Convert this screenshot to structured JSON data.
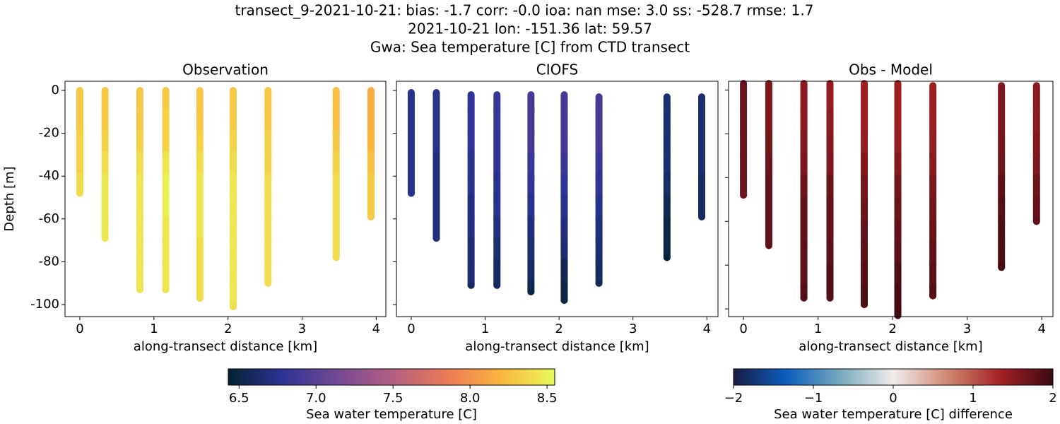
{
  "title": [
    "transect_9-2021-10-21: bias: -1.7  corr: -0.0  ioa: nan  mse: 3.0  ss: -528.7  rmse: 1.7",
    "2021-10-21 lon: -151.36 lat: 59.57",
    "Gwa: Sea temperature [C] from CTD transect"
  ],
  "chart_data": [
    {
      "type": "scatter",
      "title": "Observation",
      "xlabel": "along-transect distance [km]",
      "ylabel": "Depth [m]",
      "xlim": [
        -0.2,
        4.13
      ],
      "ylim": [
        -105.6,
        4.3
      ],
      "xticks": [
        0,
        1,
        2,
        3,
        4
      ],
      "yticks": [
        0,
        -20,
        -40,
        -60,
        -80,
        -100
      ],
      "ytick_labels": true,
      "colorbar": 0,
      "casts": [
        {
          "x": 0,
          "y": [
            0,
            -10,
            -20,
            -30,
            -40,
            -48
          ],
          "values": [
            8.3,
            8.3,
            8.35,
            8.35,
            8.4,
            8.4
          ]
        },
        {
          "x": 0.34,
          "y": [
            0,
            -10,
            -20,
            -30,
            -40,
            -50,
            -60,
            -69
          ],
          "values": [
            8.3,
            8.3,
            8.35,
            8.4,
            8.45,
            8.45,
            8.45,
            8.45
          ]
        },
        {
          "x": 0.81,
          "y": [
            0,
            -10,
            -20,
            -30,
            -40,
            -50,
            -60,
            -70,
            -80,
            -93
          ],
          "values": [
            8.3,
            8.3,
            8.35,
            8.4,
            8.45,
            8.45,
            8.45,
            8.45,
            8.45,
            8.45
          ]
        },
        {
          "x": 1.16,
          "y": [
            0,
            -10,
            -20,
            -30,
            -40,
            -50,
            -60,
            -70,
            -80,
            -93
          ],
          "values": [
            8.3,
            8.35,
            8.35,
            8.45,
            8.5,
            8.5,
            8.45,
            8.45,
            8.45,
            8.45
          ]
        },
        {
          "x": 1.62,
          "y": [
            0,
            -10,
            -20,
            -30,
            -40,
            -50,
            -60,
            -70,
            -80,
            -90,
            -97
          ],
          "values": [
            8.3,
            8.3,
            8.35,
            8.4,
            8.45,
            8.45,
            8.45,
            8.4,
            8.4,
            8.4,
            8.4
          ]
        },
        {
          "x": 2.07,
          "y": [
            0,
            -10,
            -20,
            -30,
            -40,
            -50,
            -60,
            -70,
            -80,
            -90,
            -101
          ],
          "values": [
            8.3,
            8.3,
            8.35,
            8.4,
            8.45,
            8.45,
            8.45,
            8.45,
            8.45,
            8.45,
            8.4
          ]
        },
        {
          "x": 2.54,
          "y": [
            0,
            -10,
            -20,
            -30,
            -40,
            -50,
            -60,
            -70,
            -80,
            -90
          ],
          "values": [
            8.3,
            8.3,
            8.35,
            8.35,
            8.4,
            8.4,
            8.4,
            8.4,
            8.4,
            8.4
          ]
        },
        {
          "x": 3.46,
          "y": [
            0,
            -10,
            -20,
            -30,
            -40,
            -50,
            -60,
            -70,
            -78
          ],
          "values": [
            8.25,
            8.25,
            8.3,
            8.35,
            8.4,
            8.4,
            8.4,
            8.4,
            8.4
          ]
        },
        {
          "x": 3.93,
          "y": [
            0,
            -10,
            -20,
            -30,
            -40,
            -50,
            -59
          ],
          "values": [
            8.15,
            8.15,
            8.2,
            8.25,
            8.3,
            8.3,
            8.3
          ]
        }
      ]
    },
    {
      "type": "scatter",
      "title": "CIOFS",
      "xlabel": "along-transect distance [km]",
      "xlim": [
        -0.2,
        4.15
      ],
      "ylim": [
        -105.6,
        4.3
      ],
      "xticks": [
        0,
        1,
        2,
        3,
        4
      ],
      "yticks": [
        0,
        -20,
        -40,
        -60,
        -80,
        -100
      ],
      "ytick_labels": false,
      "colorbar": 0,
      "casts": [
        {
          "x": 0,
          "y": [
            -1,
            -10,
            -20,
            -30,
            -40,
            -48
          ],
          "values": [
            6.75,
            6.75,
            6.75,
            6.75,
            6.75,
            6.75
          ]
        },
        {
          "x": 0.34,
          "y": [
            -1,
            -10,
            -20,
            -30,
            -40,
            -50,
            -60,
            -69
          ],
          "values": [
            6.75,
            6.75,
            6.75,
            6.7,
            6.7,
            6.7,
            6.7,
            6.7
          ]
        },
        {
          "x": 0.81,
          "y": [
            -2,
            -10,
            -20,
            -30,
            -40,
            -50,
            -60,
            -70,
            -80,
            -91
          ],
          "values": [
            6.8,
            6.8,
            6.8,
            6.75,
            6.75,
            6.7,
            6.7,
            6.65,
            6.65,
            6.6
          ]
        },
        {
          "x": 1.16,
          "y": [
            -2,
            -10,
            -20,
            -30,
            -40,
            -50,
            -60,
            -70,
            -80,
            -91
          ],
          "values": [
            6.85,
            6.85,
            6.8,
            6.8,
            6.75,
            6.75,
            6.7,
            6.65,
            6.6,
            6.6
          ]
        },
        {
          "x": 1.62,
          "y": [
            -2,
            -10,
            -20,
            -30,
            -40,
            -50,
            -60,
            -70,
            -80,
            -90,
            -94
          ],
          "values": [
            6.9,
            6.9,
            6.9,
            6.85,
            6.8,
            6.75,
            6.7,
            6.65,
            6.6,
            6.55,
            6.5
          ]
        },
        {
          "x": 2.07,
          "y": [
            -2,
            -10,
            -20,
            -30,
            -40,
            -50,
            -60,
            -70,
            -80,
            -90,
            -98
          ],
          "values": [
            6.9,
            6.9,
            6.9,
            6.85,
            6.8,
            6.75,
            6.7,
            6.65,
            6.55,
            6.5,
            6.5
          ]
        },
        {
          "x": 2.54,
          "y": [
            -3,
            -10,
            -20,
            -30,
            -40,
            -50,
            -60,
            -70,
            -80,
            -90
          ],
          "values": [
            6.9,
            6.9,
            6.9,
            6.85,
            6.8,
            6.75,
            6.7,
            6.65,
            6.6,
            6.55
          ]
        },
        {
          "x": 3.46,
          "y": [
            -3,
            -10,
            -20,
            -30,
            -40,
            -50,
            -60,
            -70,
            -78
          ],
          "values": [
            6.65,
            6.65,
            6.65,
            6.65,
            6.6,
            6.55,
            6.5,
            6.5,
            6.45
          ]
        },
        {
          "x": 3.93,
          "y": [
            -3,
            -10,
            -20,
            -30,
            -40,
            -50,
            -59
          ],
          "values": [
            6.65,
            6.65,
            6.65,
            6.65,
            6.6,
            6.6,
            6.6
          ]
        }
      ]
    },
    {
      "type": "scatter",
      "title": "Obs - Model",
      "xlabel": "along-transect distance [km]",
      "xlim": [
        -0.2,
        4.15
      ],
      "ylim": [
        -103.5,
        4
      ],
      "xticks": [
        0,
        1,
        2,
        3,
        4
      ],
      "yticks": [
        0,
        -20,
        -40,
        -60,
        -80,
        -100
      ],
      "ytick_labels": false,
      "colorbar": 1,
      "casts": [
        {
          "x": 0,
          "y": [
            3,
            -10,
            -20,
            -30,
            -40,
            -48
          ],
          "values": [
            1.7,
            1.7,
            1.7,
            1.7,
            1.7,
            1.7
          ]
        },
        {
          "x": 0.34,
          "y": [
            3,
            -10,
            -20,
            -30,
            -40,
            -50,
            -60,
            -71
          ],
          "values": [
            1.6,
            1.6,
            1.65,
            1.7,
            1.75,
            1.75,
            1.75,
            1.8
          ]
        },
        {
          "x": 0.81,
          "y": [
            3,
            -10,
            -20,
            -30,
            -40,
            -50,
            -60,
            -70,
            -80,
            -90,
            -95
          ],
          "values": [
            1.5,
            1.5,
            1.55,
            1.6,
            1.7,
            1.75,
            1.75,
            1.8,
            1.8,
            1.85,
            1.85
          ]
        },
        {
          "x": 1.16,
          "y": [
            3,
            -10,
            -20,
            -30,
            -40,
            -50,
            -60,
            -70,
            -80,
            -90,
            -95
          ],
          "values": [
            1.45,
            1.5,
            1.55,
            1.6,
            1.7,
            1.75,
            1.75,
            1.8,
            1.85,
            1.85,
            1.85
          ]
        },
        {
          "x": 1.62,
          "y": [
            3,
            -10,
            -20,
            -30,
            -40,
            -50,
            -60,
            -70,
            -80,
            -90,
            -98
          ],
          "values": [
            1.4,
            1.4,
            1.45,
            1.55,
            1.65,
            1.7,
            1.75,
            1.8,
            1.85,
            1.9,
            1.9
          ]
        },
        {
          "x": 2.07,
          "y": [
            3,
            -10,
            -20,
            -30,
            -40,
            -50,
            -60,
            -70,
            -80,
            -90,
            -100,
            -103
          ],
          "values": [
            1.4,
            1.4,
            1.45,
            1.55,
            1.65,
            1.7,
            1.75,
            1.8,
            1.9,
            1.95,
            1.95,
            1.95
          ]
        },
        {
          "x": 2.54,
          "y": [
            2,
            -10,
            -20,
            -30,
            -40,
            -50,
            -60,
            -70,
            -80,
            -90,
            -94
          ],
          "values": [
            1.4,
            1.4,
            1.45,
            1.5,
            1.6,
            1.65,
            1.7,
            1.75,
            1.8,
            1.85,
            1.85
          ]
        },
        {
          "x": 3.46,
          "y": [
            2,
            -10,
            -20,
            -30,
            -40,
            -50,
            -60,
            -70,
            -80,
            -81
          ],
          "values": [
            1.6,
            1.6,
            1.65,
            1.7,
            1.8,
            1.85,
            1.9,
            1.9,
            1.95,
            1.95
          ]
        },
        {
          "x": 3.93,
          "y": [
            2,
            -10,
            -20,
            -30,
            -40,
            -50,
            -60
          ],
          "values": [
            1.5,
            1.5,
            1.55,
            1.6,
            1.7,
            1.75,
            1.8
          ]
        }
      ]
    }
  ],
  "colorbars": [
    {
      "label": "Sea water temperature [C]",
      "lim": [
        6.43,
        8.55
      ],
      "ticks": [
        6.5,
        {
          "value": 7,
          "label": "7.0"
        },
        7.5,
        {
          "value": 8,
          "label": "8.0"
        },
        8.5
      ],
      "colors": [
        "#042333",
        "#2c3395",
        "#744992",
        "#b15f82",
        "#eb7958",
        "#fbb43d",
        "#e8fa5b"
      ]
    },
    {
      "label": "Sea water temperature [C] difference",
      "lim": [
        -2,
        2
      ],
      "ticks": [
        {
          "value": -2,
          "label": "−2"
        },
        {
          "value": -1,
          "label": "−1"
        },
        0,
        1,
        2
      ],
      "colors": [
        "#181c43",
        "#0c5ebe",
        "#75aabe",
        "#f1eceb",
        "#d08b73",
        "#a52125",
        "#3c0912"
      ]
    }
  ]
}
